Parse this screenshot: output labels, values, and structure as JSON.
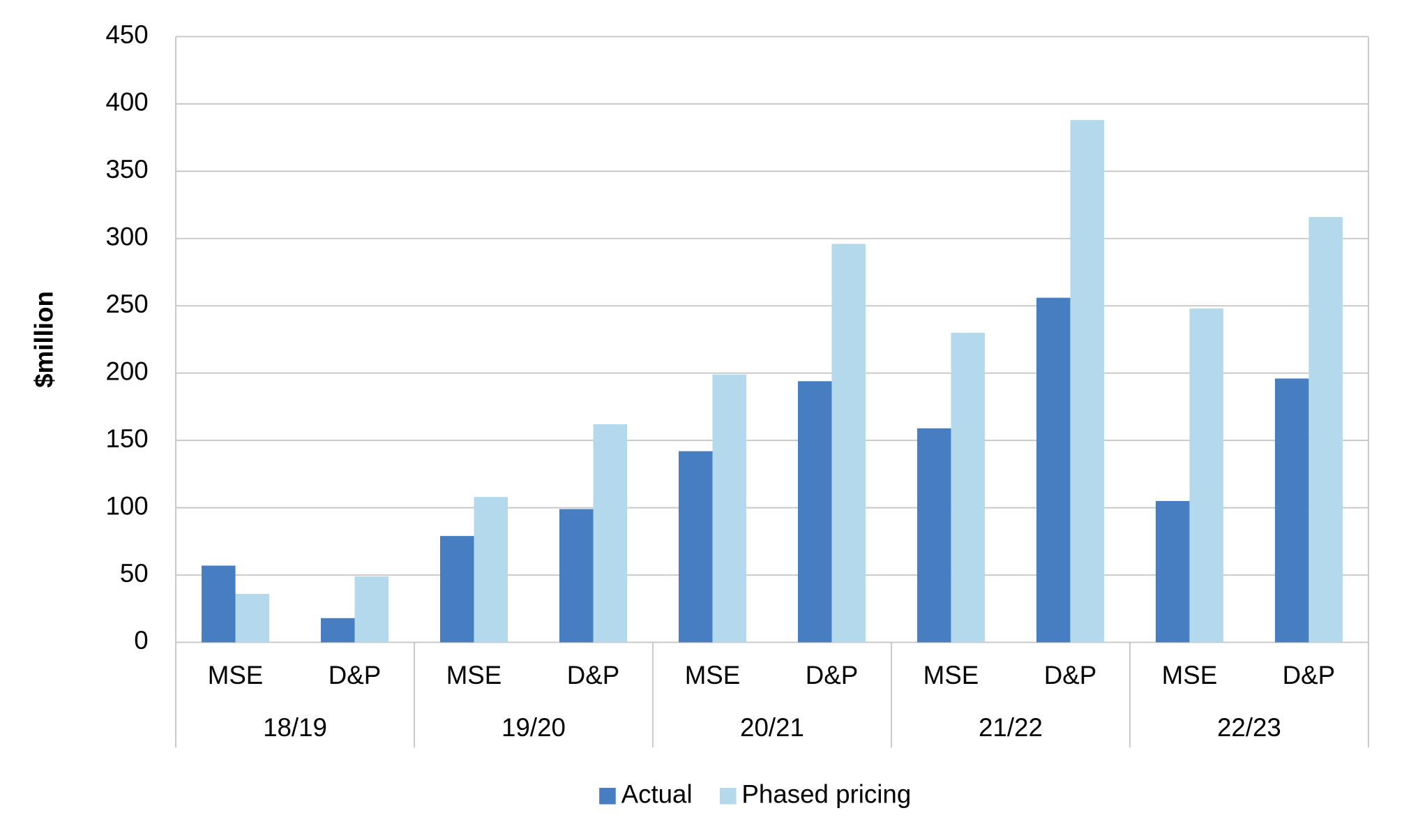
{
  "chart_data": {
    "type": "bar",
    "y_label": "$million",
    "categories": [
      "MSE",
      "D&P",
      "MSE",
      "D&P",
      "MSE",
      "D&P",
      "MSE",
      "D&P",
      "MSE",
      "D&P"
    ],
    "groups": [
      "18/19",
      "19/20",
      "20/21",
      "21/22",
      "22/23"
    ],
    "series": [
      {
        "name": "Actual",
        "color": "#467ec1",
        "values": [
          57,
          18,
          79,
          99,
          142,
          194,
          159,
          256,
          105,
          196
        ]
      },
      {
        "name": "Phased pricing",
        "color": "#b4d9ed",
        "values": [
          36,
          49,
          108,
          162,
          199,
          296,
          230,
          388,
          248,
          316
        ]
      }
    ],
    "ylim": [
      0,
      450
    ],
    "yticks": [
      0,
      50,
      100,
      150,
      200,
      250,
      300,
      350,
      400,
      450
    ],
    "grid": true,
    "legend": "bottom"
  }
}
